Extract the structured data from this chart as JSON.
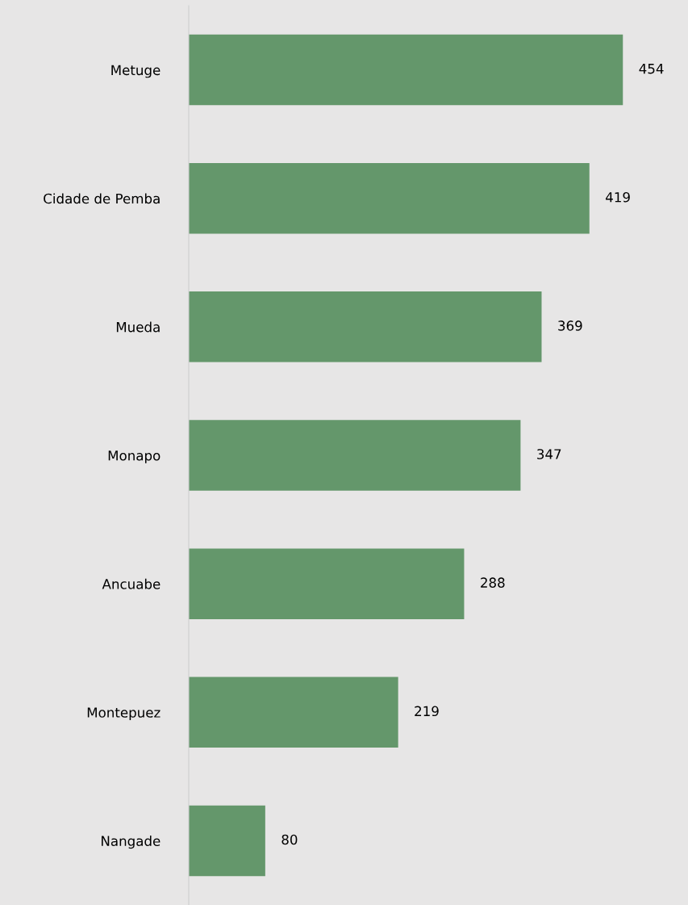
{
  "chart_data": {
    "type": "bar",
    "orientation": "horizontal",
    "categories": [
      "Metuge",
      "Cidade de Pemba",
      "Mueda",
      "Monapo",
      "Ancuabe",
      "Montepuez",
      "Nangade"
    ],
    "values": [
      454,
      419,
      369,
      347,
      288,
      219,
      80
    ],
    "color": "#64976b",
    "data_labels": true,
    "grid": false,
    "legend": false
  }
}
